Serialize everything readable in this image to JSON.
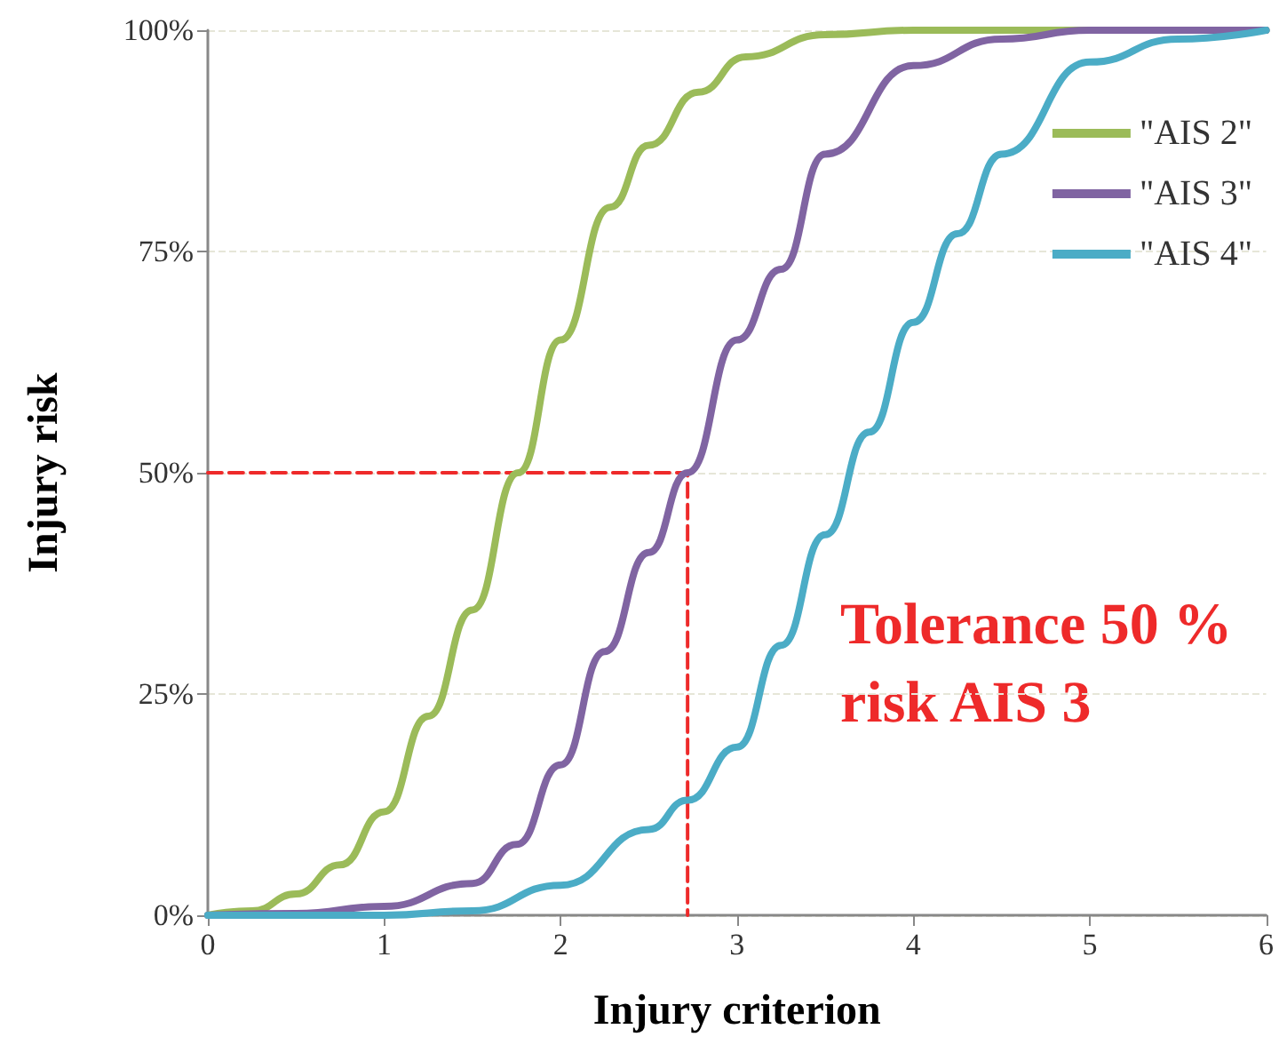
{
  "chart_data": {
    "type": "line",
    "xlabel": "Injury criterion",
    "ylabel": "Injury risk",
    "xlim": [
      0,
      6
    ],
    "xticks": [
      0,
      1,
      2,
      3,
      4,
      5,
      6
    ],
    "ylim": [
      0,
      100
    ],
    "yticks": [
      {
        "value": 0,
        "label": "0%"
      },
      {
        "value": 25,
        "label": "25%"
      },
      {
        "value": 50,
        "label": "50%"
      },
      {
        "value": 75,
        "label": "75%"
      },
      {
        "value": 100,
        "label": "100%"
      }
    ],
    "grid": "y",
    "legend": "top right",
    "marker": "none",
    "line_style": "solid",
    "annotations": [
      "Tolerance 50 %\nrisk AIS 3"
    ],
    "series": [
      {
        "name": "\"AIS 2\"",
        "color": "#9bbb59",
        "x": [
          0,
          0.25,
          0.5,
          0.75,
          1,
          1.25,
          1.5,
          1.76,
          2,
          2.28,
          2.5,
          2.78,
          3.05,
          3.5,
          4,
          5,
          6
        ],
        "values": [
          0,
          0.5,
          2.4,
          5.7,
          11.7,
          22.5,
          34.5,
          50,
          65,
          80,
          87,
          93,
          97,
          99.5,
          100,
          100,
          100
        ]
      },
      {
        "name": "\"AIS 3\"",
        "color": "#8064a2",
        "x": [
          0,
          0.5,
          1,
          1.5,
          1.75,
          2,
          2.25,
          2.5,
          2.72,
          3,
          3.25,
          3.5,
          4,
          4.5,
          5,
          6
        ],
        "values": [
          0,
          0.2,
          1,
          3.6,
          8,
          17,
          29.8,
          41,
          50,
          65,
          73,
          86,
          96,
          99,
          100,
          100
        ]
      },
      {
        "name": "\"AIS 4\"",
        "color": "#4bacc6",
        "x": [
          0,
          1,
          1.5,
          2,
          2.5,
          2.72,
          3,
          3.25,
          3.5,
          3.75,
          4,
          4.25,
          4.5,
          5,
          5.5,
          6
        ],
        "values": [
          0,
          0,
          0.5,
          3.4,
          9.7,
          13,
          19,
          30.5,
          43,
          54.6,
          67,
          77,
          86,
          96.4,
          99,
          100
        ]
      },
      {
        "color": "#ee2a2a",
        "line_style": "dashed",
        "x": [
          0,
          2.72,
          2.72
        ],
        "values": [
          50,
          50,
          0
        ]
      }
    ]
  }
}
